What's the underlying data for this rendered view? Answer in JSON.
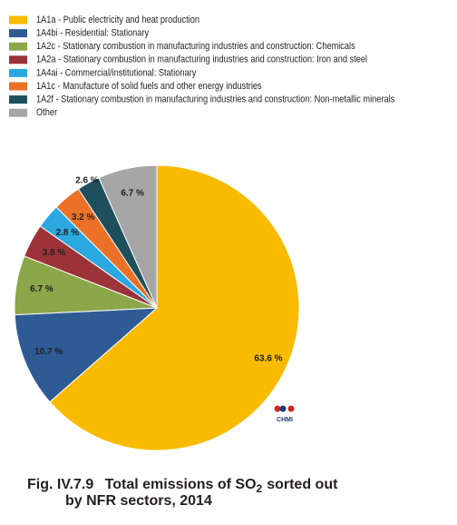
{
  "chart_data": {
    "type": "pie",
    "figure_label": "Fig. IV.7.9",
    "title_parts": [
      "Total emissions of SO",
      "2",
      "sorted out",
      "by NFR sectors, 2014"
    ],
    "logo_text": "CHMI",
    "categories": [
      "1A1a - Public electricity and heat production",
      "1A4bi - Residential: Stationary",
      "1A2c - Stationary combustion in manufacturing industries and construction: Chemicals",
      "1A2a - Stationary combustion in manufacturing industries and construction: Iron and steel",
      "1A4ai - Commercial/institutional: Stationary",
      "1A1c - Manufacture of solid fuels and other energy industries",
      "1A2f - Stationary combustion in manufacturing industries and construction: Non-metallic minerals",
      "Other"
    ],
    "values": [
      63.6,
      10.7,
      6.7,
      3.8,
      2.8,
      3.2,
      2.6,
      6.7
    ],
    "value_labels": [
      "63.6 %",
      "10.7 %",
      "6.7 %",
      "3.8 %",
      "2.8 %",
      "3.2 %",
      "2.6 %",
      "6.7 %"
    ],
    "colors": [
      "#f9bb00",
      "#2f5b95",
      "#8ca64a",
      "#9c3338",
      "#2aa8df",
      "#ea7125",
      "#1e4f5c",
      "#a6a6a6"
    ],
    "legend": "top-left"
  }
}
